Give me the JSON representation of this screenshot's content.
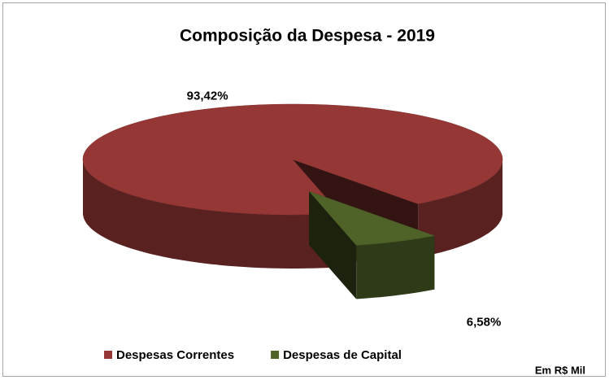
{
  "chart_data": {
    "type": "pie",
    "title": "Composição da Despesa - 2019",
    "categories": [
      "Despesas Correntes",
      "Despesas de Capital"
    ],
    "values": [
      93.42,
      6.58
    ],
    "value_labels": [
      "93,42%",
      "6,58%"
    ],
    "colors": [
      "#953735",
      "#4f6228"
    ],
    "legend": "bottom",
    "annotation": "Em R$ Mil"
  }
}
